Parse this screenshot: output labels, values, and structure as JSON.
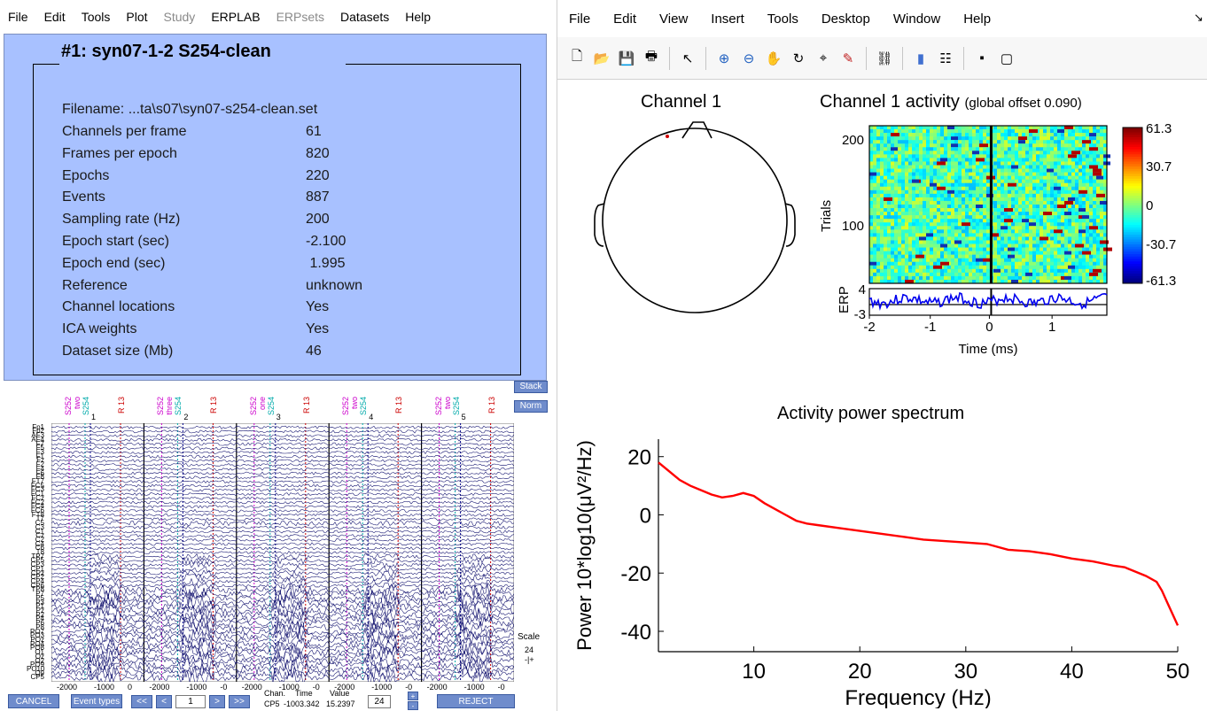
{
  "eeglab": {
    "menu": [
      "File",
      "Edit",
      "Tools",
      "Plot",
      "Study",
      "ERPLAB",
      "ERPsets",
      "Datasets",
      "Help"
    ],
    "menu_disabled": [
      "Study",
      "ERPsets"
    ],
    "dataset_title": "#1:  syn07-1-2  S254-clean",
    "filename_row": "Filename: ...ta\\s07\\syn07-s254-clean.set",
    "info_rows": [
      {
        "label": "Channels per frame",
        "value": "61"
      },
      {
        "label": "Frames per epoch",
        "value": "820"
      },
      {
        "label": "Epochs",
        "value": "220"
      },
      {
        "label": "Events",
        "value": "887"
      },
      {
        "label": "Sampling rate (Hz)",
        "value": "200"
      },
      {
        "label": "Epoch start (sec)",
        "value": "-2.100"
      },
      {
        "label": "Epoch end (sec)",
        "value": " 1.995"
      },
      {
        "label": "Reference",
        "value": "unknown"
      },
      {
        "label": "Channel locations",
        "value": "Yes"
      },
      {
        "label": "ICA weights",
        "value": "Yes"
      },
      {
        "label": "Dataset size (Mb)",
        "value": "46"
      }
    ]
  },
  "scroll": {
    "stack_label": "Stack",
    "norm_label": "Norm",
    "scale_label": "Scale",
    "scale_value": "24",
    "scale_pm": "-|+",
    "event_groups": [
      {
        "labels": [
          "S252",
          "two",
          "S254"
        ],
        "num": "1",
        "rlabel": "R 13"
      },
      {
        "labels": [
          "S252",
          "three",
          "S254"
        ],
        "num": "2",
        "rlabel": "R 13"
      },
      {
        "labels": [
          "S252",
          "one",
          "S254"
        ],
        "num": "3",
        "rlabel": "R 13"
      },
      {
        "labels": [
          "S252",
          "two",
          "S254"
        ],
        "num": "4",
        "rlabel": "R 13"
      },
      {
        "labels": [
          "S252",
          "two",
          "S254"
        ],
        "num": "5",
        "rlabel": "R 13"
      }
    ],
    "channels": [
      "Fp1",
      "Fp2",
      "AF3",
      "AF4",
      "F7",
      "F5",
      "F3",
      "F1",
      "Fz",
      "F2",
      "F4",
      "F6",
      "F8",
      "FT7",
      "FC5",
      "FC3",
      "FC1",
      "FCz",
      "FC2",
      "FC4",
      "FC6",
      "FT8",
      "T7",
      "C5",
      "C3",
      "C1",
      "Cz",
      "C2",
      "C4",
      "C6",
      "T8",
      "TP7",
      "CP5",
      "CP3",
      "CP1",
      "CPz",
      "CP2",
      "CP4",
      "CP6",
      "TP8",
      "P7",
      "P5",
      "P3",
      "P1",
      "Pz",
      "P2",
      "P4",
      "P6",
      "P8",
      "PO7",
      "PO3",
      "POz",
      "PO4",
      "PO8",
      "O1",
      "Oz",
      "O2",
      "PO9",
      "PO10",
      "O9",
      "CP5"
    ],
    "time_ticks": [
      "-2000",
      "-1000",
      "0",
      "-2000",
      "-1000",
      "-0",
      "-2000",
      "-1000",
      "-0",
      "-2000",
      "-1000",
      "-0",
      "-2000",
      "-1000",
      "-0"
    ],
    "buttons": {
      "cancel": "CANCEL",
      "event_types": "Event types",
      "first": "<<",
      "prev": "<",
      "epoch": "1",
      "next": ">",
      "last": ">>",
      "plus": "+",
      "minus": "-",
      "reject": "REJECT"
    },
    "readout": {
      "header_chan": "Chan.",
      "header_time": "Time",
      "header_value": "Value",
      "chan": "CP5",
      "time": "-1003.342",
      "value": "15.2397"
    },
    "scale_box": "24"
  },
  "figure": {
    "menu": [
      "File",
      "Edit",
      "View",
      "Insert",
      "Tools",
      "Desktop",
      "Window",
      "Help"
    ],
    "dock_arrow": "↘",
    "toolbar_icons": [
      "new-file-icon",
      "open-folder-icon",
      "save-icon",
      "print-icon",
      "|",
      "pointer-icon",
      "|",
      "zoom-in-icon",
      "zoom-out-icon",
      "pan-icon",
      "rotate-icon",
      "data-cursor-icon",
      "brush-icon",
      "|",
      "link-icon",
      "|",
      "colorbar-icon",
      "legend-icon",
      "|",
      "hide-plot-tools-icon",
      "show-plot-tools-icon"
    ],
    "topo_title": "Channel 1",
    "erpimage_title": "Channel 1 activity",
    "erpimage_subtitle": "(global offset 0.090)",
    "trials_label": "Trials",
    "erp_label": "ERP",
    "erp_ticks": [
      "4",
      "-3"
    ],
    "trial_ticks": [
      "200",
      "100"
    ],
    "time_ticks": [
      "-2",
      "-1",
      "0",
      "1"
    ],
    "time_label": "Time (ms)",
    "colorbar_ticks": [
      "61.3",
      "30.7",
      "0",
      "-30.7",
      "-61.3"
    ],
    "spectrum_title": "Activity power spectrum"
  },
  "chart_data": {
    "type": "line",
    "title": "Activity power spectrum",
    "xlabel": "Frequency (Hz)",
    "ylabel": "Power 10*log10(μV²/Hz)",
    "xlim": [
      1,
      50
    ],
    "ylim": [
      -47,
      26
    ],
    "xticks": [
      10,
      20,
      30,
      40,
      50
    ],
    "yticks": [
      20,
      0,
      -20,
      -40
    ],
    "series": [
      {
        "color": "#ff0000",
        "x": [
          1,
          2,
          3,
          4,
          5,
          6,
          7,
          8,
          9,
          10,
          11,
          12,
          13,
          14,
          15,
          16,
          18,
          20,
          22,
          24,
          26,
          28,
          30,
          32,
          34,
          36,
          38,
          40,
          42,
          44,
          45,
          46,
          47,
          48,
          48.5,
          49,
          49.5,
          50
        ],
        "y": [
          18,
          15,
          12,
          10,
          8.5,
          7,
          6,
          6.5,
          7.5,
          6.5,
          4,
          2,
          0,
          -2,
          -3,
          -3.5,
          -4.5,
          -5.5,
          -6.5,
          -7.5,
          -8.5,
          -9,
          -9.5,
          -10,
          -12,
          -12.5,
          -13.5,
          -15,
          -16,
          -17.5,
          -18,
          -19.5,
          -21,
          -23,
          -26,
          -30,
          -34,
          -38
        ]
      }
    ]
  }
}
